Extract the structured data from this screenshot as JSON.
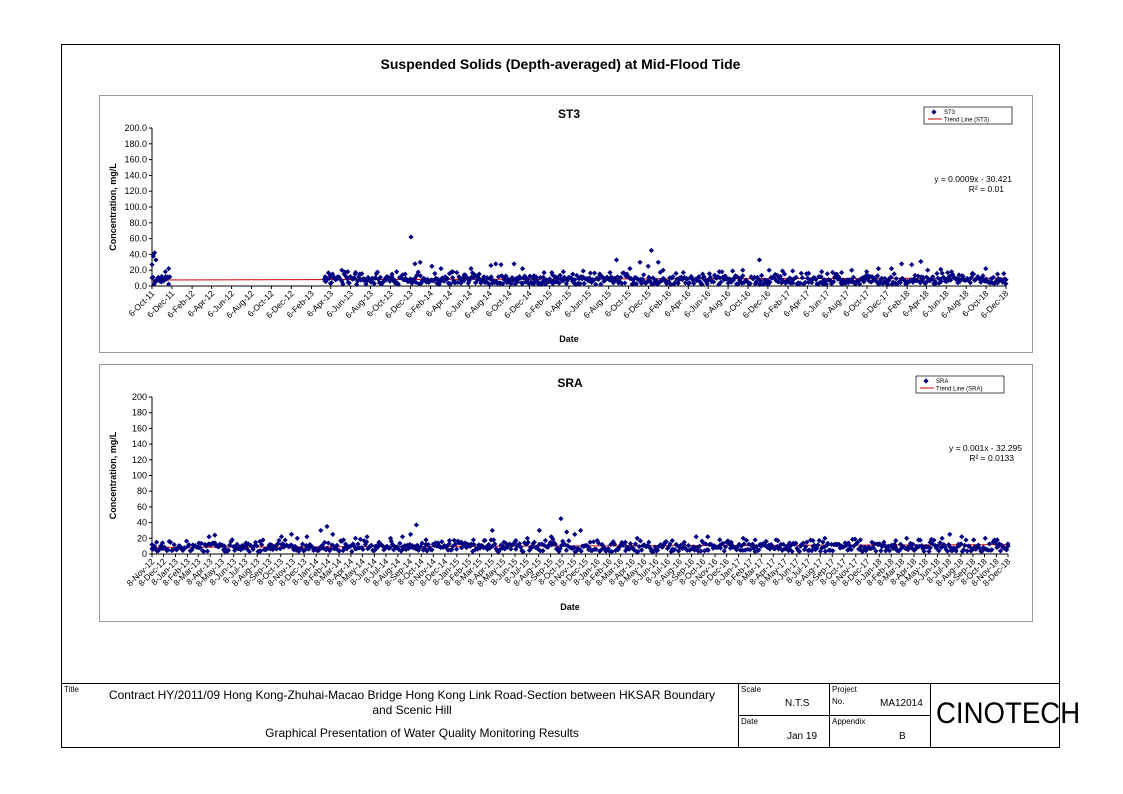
{
  "page": {
    "title": "Suspended Solids (Depth-averaged) at Mid-Flood Tide"
  },
  "colors": {
    "marker": "#000080",
    "trend": "#cc0000",
    "plot_bg": "#ffffff"
  },
  "chart_data": [
    {
      "type": "scatter",
      "title": "ST3",
      "xlabel": "Date",
      "ylabel": "Concentration, mg/L",
      "ylim": [
        0,
        200
      ],
      "y_ticks": [
        "200.0",
        "180.0",
        "160.0",
        "140.0",
        "120.0",
        "100.0",
        "80.0",
        "60.0",
        "40.0",
        "20.0",
        "0.0"
      ],
      "x_ticks": [
        "6-Oct-11",
        "6-Dec-11",
        "6-Feb-12",
        "6-Apr-12",
        "6-Jun-12",
        "6-Aug-12",
        "6-Oct-12",
        "6-Dec-12",
        "6-Feb-13",
        "6-Apr-13",
        "6-Jun-13",
        "6-Aug-13",
        "6-Oct-13",
        "6-Dec-13",
        "6-Feb-14",
        "6-Apr-14",
        "6-Jun-14",
        "6-Aug-14",
        "6-Oct-14",
        "6-Dec-14",
        "6-Feb-15",
        "6-Apr-15",
        "6-Jun-15",
        "6-Aug-15",
        "6-Oct-15",
        "6-Dec-15",
        "6-Feb-16",
        "6-Apr-16",
        "6-Jun-16",
        "6-Aug-16",
        "6-Oct-16",
        "6-Dec-16",
        "6-Feb-17",
        "6-Apr-17",
        "6-Jun-17",
        "6-Aug-17",
        "6-Oct-17",
        "6-Dec-17",
        "6-Feb-18",
        "6-Apr-18",
        "6-Jun-18",
        "6-Aug-18",
        "6-Oct-18",
        "6-Dec-18"
      ],
      "grid": false,
      "legend": {
        "position": "top-right",
        "entries": [
          "ST3",
          "Trend Line (ST3)"
        ]
      },
      "equation": "y = 0.0009x - 30.421",
      "r2": "R² = 0.01",
      "series": [
        {
          "name": "ST3",
          "points": [
            [
              "2011-10-06",
              27
            ],
            [
              "2011-10-10",
              38
            ],
            [
              "2011-10-14",
              42
            ],
            [
              "2011-10-18",
              33
            ],
            [
              "2011-10-24",
              9
            ],
            [
              "2011-11-05",
              12
            ],
            [
              "2011-11-16",
              18
            ],
            [
              "2011-11-26",
              22
            ],
            [
              "2013-03-20",
              6
            ],
            [
              "2013-04-05",
              13
            ],
            [
              "2013-04-25",
              9
            ],
            [
              "2013-05-10",
              20
            ],
            [
              "2013-05-28",
              18
            ],
            [
              "2013-06-20",
              15
            ],
            [
              "2013-07-15",
              9
            ],
            [
              "2013-08-20",
              10
            ],
            [
              "2013-09-05",
              11
            ],
            [
              "2013-10-10",
              12
            ],
            [
              "2013-10-25",
              18
            ],
            [
              "2013-11-20",
              15
            ],
            [
              "2013-12-08",
              62
            ],
            [
              "2013-12-20",
              28
            ],
            [
              "2014-01-05",
              30
            ],
            [
              "2014-02-10",
              25
            ],
            [
              "2014-03-10",
              22
            ],
            [
              "2014-04-15",
              18
            ],
            [
              "2014-05-20",
              14
            ],
            [
              "2014-06-10",
              22
            ],
            [
              "2014-07-05",
              15
            ],
            [
              "2014-08-10",
              26
            ],
            [
              "2014-08-25",
              28
            ],
            [
              "2014-09-10",
              27
            ],
            [
              "2014-10-20",
              28
            ],
            [
              "2014-11-15",
              22
            ],
            [
              "2014-12-20",
              13
            ],
            [
              "2015-01-20",
              17
            ],
            [
              "2015-02-15",
              14
            ],
            [
              "2015-03-20",
              18
            ],
            [
              "2015-04-18",
              15
            ],
            [
              "2015-05-20",
              19
            ],
            [
              "2015-07-10",
              13
            ],
            [
              "2015-08-10",
              17
            ],
            [
              "2015-08-30",
              33
            ],
            [
              "2015-10-10",
              22
            ],
            [
              "2015-11-10",
              30
            ],
            [
              "2015-12-05",
              25
            ],
            [
              "2015-12-15",
              45
            ],
            [
              "2016-01-05",
              30
            ],
            [
              "2016-01-20",
              20
            ],
            [
              "2016-03-10",
              10
            ],
            [
              "2016-04-15",
              12
            ],
            [
              "2016-05-20",
              15
            ],
            [
              "2016-07-10",
              18
            ],
            [
              "2016-08-20",
              19
            ],
            [
              "2016-09-20",
              20
            ],
            [
              "2016-11-10",
              33
            ],
            [
              "2016-12-10",
              20
            ],
            [
              "2017-01-20",
              19
            ],
            [
              "2017-02-20",
              19
            ],
            [
              "2017-04-10",
              16
            ],
            [
              "2017-05-20",
              18
            ],
            [
              "2017-07-20",
              17
            ],
            [
              "2017-08-20",
              20
            ],
            [
              "2017-10-05",
              18
            ],
            [
              "2017-11-10",
              22
            ],
            [
              "2017-12-20",
              22
            ],
            [
              "2018-01-20",
              28
            ],
            [
              "2018-02-20",
              27
            ],
            [
              "2018-03-20",
              31
            ],
            [
              "2018-04-10",
              20
            ],
            [
              "2018-05-20",
              21
            ],
            [
              "2018-06-10",
              17
            ],
            [
              "2018-07-15",
              14
            ],
            [
              "2018-08-25",
              15
            ],
            [
              "2018-10-05",
              22
            ],
            [
              "2018-11-10",
              15
            ],
            [
              "2018-12-06",
              8
            ]
          ]
        },
        {
          "name": "Trend Line (ST3)",
          "type": "line",
          "start": [
            "2011-10-06",
            7.6
          ],
          "end": [
            "2018-12-06",
            10.0
          ]
        }
      ]
    },
    {
      "type": "scatter",
      "title": "SRA",
      "xlabel": "Date",
      "ylabel": "Concentration, mg/L",
      "ylim": [
        0,
        200
      ],
      "y_ticks": [
        "200",
        "180",
        "160",
        "140",
        "120",
        "100",
        "80",
        "60",
        "40",
        "20",
        "0"
      ],
      "x_ticks": [
        "8-Nov-12",
        "8-Dec-12",
        "8-Jan-13",
        "8-Feb-13",
        "8-Mar-13",
        "8-Apr-13",
        "8-May-13",
        "8-Jun-13",
        "8-Jul-13",
        "8-Aug-13",
        "8-Sep-13",
        "8-Oct-13",
        "8-Nov-13",
        "8-Dec-13",
        "8-Jan-14",
        "8-Feb-14",
        "8-Mar-14",
        "8-Apr-14",
        "8-May-14",
        "8-Jun-14",
        "8-Jul-14",
        "8-Aug-14",
        "8-Sep-14",
        "8-Oct-14",
        "8-Nov-14",
        "8-Dec-14",
        "8-Jan-15",
        "8-Feb-15",
        "8-Mar-15",
        "8-Apr-15",
        "8-May-15",
        "8-Jun-15",
        "8-Jul-15",
        "8-Aug-15",
        "8-Sep-15",
        "8-Oct-15",
        "8-Nov-15",
        "8-Dec-15",
        "8-Jan-16",
        "8-Feb-16",
        "8-Mar-16",
        "8-Apr-16",
        "8-May-16",
        "8-Jun-16",
        "8-Jul-16",
        "8-Aug-16",
        "8-Sep-16",
        "8-Oct-16",
        "8-Nov-16",
        "8-Dec-16",
        "8-Jan-17",
        "8-Feb-17",
        "8-Mar-17",
        "8-Apr-17",
        "8-May-17",
        "8-Jun-17",
        "8-Jul-17",
        "8-Aug-17",
        "8-Sep-17",
        "8-Oct-17",
        "8-Nov-17",
        "8-Dec-17",
        "8-Jan-18",
        "8-Feb-18",
        "8-Mar-18",
        "8-Apr-18",
        "8-May-18",
        "8-Jun-18",
        "8-Jul-18",
        "8-Aug-18",
        "8-Sep-18",
        "8-Oct-18",
        "8-Nov-18",
        "8-Dec-18"
      ],
      "grid": false,
      "legend": {
        "position": "top-right",
        "entries": [
          "SRA",
          "Trend Line (SRA)"
        ]
      },
      "equation": "y = 0.001x - 32.295",
      "r2": "R² = 0.0133",
      "series": [
        {
          "name": "SRA",
          "points": [
            [
              "2012-11-08",
              12
            ],
            [
              "2012-11-20",
              15
            ],
            [
              "2012-12-05",
              14
            ],
            [
              "2013-02-20",
              6
            ],
            [
              "2013-03-10",
              8
            ],
            [
              "2013-03-25",
              12
            ],
            [
              "2013-04-05",
              22
            ],
            [
              "2013-04-20",
              24
            ],
            [
              "2013-05-15",
              10
            ],
            [
              "2013-06-10",
              9
            ],
            [
              "2013-07-10",
              14
            ],
            [
              "2013-08-15",
              16
            ],
            [
              "2013-09-10",
              12
            ],
            [
              "2013-10-10",
              22
            ],
            [
              "2013-11-05",
              25
            ],
            [
              "2013-11-20",
              20
            ],
            [
              "2013-12-15",
              22
            ],
            [
              "2014-01-20",
              30
            ],
            [
              "2014-02-05",
              35
            ],
            [
              "2014-02-20",
              25
            ],
            [
              "2014-03-20",
              18
            ],
            [
              "2014-04-20",
              20
            ],
            [
              "2014-05-20",
              22
            ],
            [
              "2014-06-20",
              15
            ],
            [
              "2014-07-20",
              20
            ],
            [
              "2014-08-20",
              22
            ],
            [
              "2014-09-10",
              25
            ],
            [
              "2014-09-25",
              37
            ],
            [
              "2014-10-20",
              18
            ],
            [
              "2014-11-20",
              14
            ],
            [
              "2014-12-20",
              17
            ],
            [
              "2015-01-20",
              15
            ],
            [
              "2015-02-20",
              18
            ],
            [
              "2015-03-20",
              17
            ],
            [
              "2015-04-10",
              30
            ],
            [
              "2015-05-10",
              15
            ],
            [
              "2015-06-10",
              17
            ],
            [
              "2015-07-10",
              20
            ],
            [
              "2015-08-10",
              30
            ],
            [
              "2015-09-10",
              22
            ],
            [
              "2015-10-05",
              45
            ],
            [
              "2015-10-20",
              28
            ],
            [
              "2015-11-10",
              25
            ],
            [
              "2015-11-25",
              30
            ],
            [
              "2015-12-20",
              15
            ],
            [
              "2016-01-20",
              12
            ],
            [
              "2016-02-20",
              13
            ],
            [
              "2016-03-20",
              15
            ],
            [
              "2016-04-20",
              20
            ],
            [
              "2016-05-20",
              15
            ],
            [
              "2016-06-20",
              12
            ],
            [
              "2016-07-20",
              17
            ],
            [
              "2016-08-20",
              15
            ],
            [
              "2016-09-20",
              22
            ],
            [
              "2016-10-20",
              22
            ],
            [
              "2016-11-20",
              18
            ],
            [
              "2016-12-20",
              15
            ],
            [
              "2017-01-20",
              20
            ],
            [
              "2017-02-20",
              18
            ],
            [
              "2017-03-20",
              16
            ],
            [
              "2017-04-20",
              17
            ],
            [
              "2017-05-20",
              14
            ],
            [
              "2017-06-20",
              12
            ],
            [
              "2017-07-20",
              17
            ],
            [
              "2017-08-20",
              20
            ],
            [
              "2017-09-20",
              12
            ],
            [
              "2017-10-20",
              14
            ],
            [
              "2017-11-20",
              18
            ],
            [
              "2017-12-20",
              15
            ],
            [
              "2018-01-20",
              15
            ],
            [
              "2018-02-20",
              17
            ],
            [
              "2018-03-20",
              20
            ],
            [
              "2018-04-20",
              18
            ],
            [
              "2018-05-20",
              15
            ],
            [
              "2018-06-20",
              20
            ],
            [
              "2018-07-10",
              25
            ],
            [
              "2018-08-10",
              22
            ],
            [
              "2018-09-10",
              18
            ],
            [
              "2018-10-10",
              20
            ],
            [
              "2018-11-10",
              18
            ],
            [
              "2018-12-08",
              10
            ]
          ]
        },
        {
          "name": "Trend Line (SRA)",
          "type": "line",
          "start": [
            "2012-11-08",
            8.5
          ],
          "end": [
            "2018-12-08",
            12.0
          ]
        }
      ]
    }
  ],
  "title_block": {
    "title_label": "Title",
    "title_line1": "Contract HY/2011/09 Hong Kong-Zhuhai-Macao Bridge Hong Kong Link Road-Section between HKSAR Boundary",
    "title_line2": "and Scenic Hill",
    "title_line3": "Graphical Presentation of Water Quality Monitoring Results",
    "scale_label": "Scale",
    "scale_value": "N.T.S",
    "project_label": "Project",
    "project_no_label": "No.",
    "project_value": "MA12014",
    "date_label": "Date",
    "date_value": "Jan 19",
    "appendix_label": "Appendix",
    "appendix_value": "B",
    "logo": "CINOTECH"
  }
}
